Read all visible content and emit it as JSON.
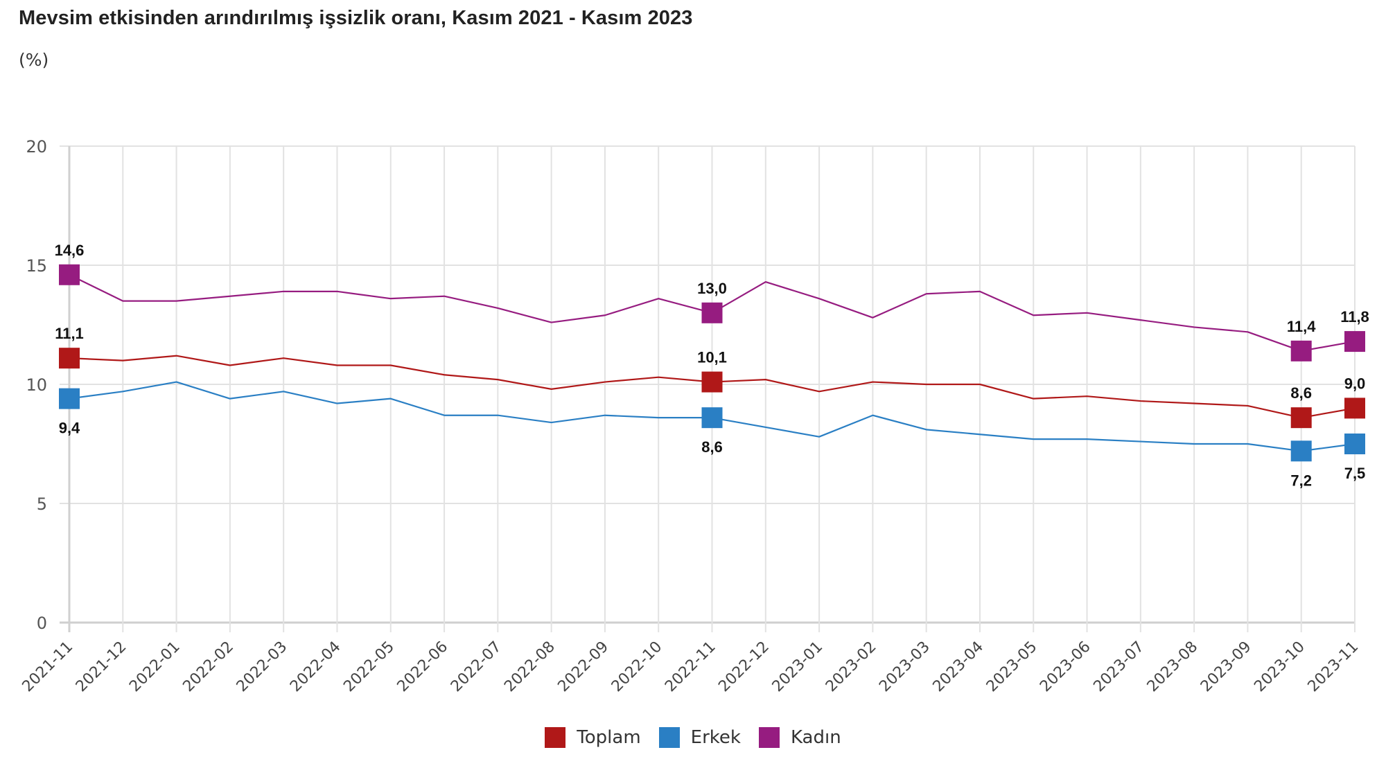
{
  "chart_data": {
    "type": "line",
    "title": "Mevsim etkisinden arındırılmış işsizlik oranı, Kasım 2021 - Kasım 2023",
    "subtitle": "(%)",
    "xlabel": "",
    "ylabel": "",
    "ylim": [
      0,
      20
    ],
    "yticks": [
      "0",
      "5",
      "10",
      "15",
      "20"
    ],
    "ytick_values": [
      0,
      5,
      10,
      15,
      20
    ],
    "grid": true,
    "legend_position": "bottom-center",
    "categories": [
      "2021-11",
      "2021-12",
      "2022-01",
      "2022-02",
      "2022-03",
      "2022-04",
      "2022-05",
      "2022-06",
      "2022-07",
      "2022-08",
      "2022-09",
      "2022-10",
      "2022-11",
      "2022-12",
      "2023-01",
      "2023-02",
      "2023-03",
      "2023-04",
      "2023-05",
      "2023-06",
      "2023-07",
      "2023-08",
      "2023-09",
      "2023-10",
      "2023-11"
    ],
    "series": [
      {
        "name": "Toplam",
        "color": "#B01818",
        "values": [
          11.1,
          11.0,
          11.2,
          10.8,
          11.1,
          10.8,
          10.8,
          10.4,
          10.2,
          9.8,
          10.1,
          10.3,
          10.1,
          10.2,
          9.7,
          10.1,
          10.0,
          10.0,
          9.4,
          9.5,
          9.3,
          9.2,
          9.1,
          8.6,
          9.0
        ],
        "labels": {
          "0": "11,1",
          "12": "10,1",
          "23": "8,6",
          "24": "9,0"
        },
        "label_side": "above"
      },
      {
        "name": "Erkek",
        "color": "#2A7FC4",
        "values": [
          9.4,
          9.7,
          10.1,
          9.4,
          9.7,
          9.2,
          9.4,
          8.7,
          8.7,
          8.4,
          8.7,
          8.6,
          8.6,
          8.2,
          7.8,
          8.7,
          8.1,
          7.9,
          7.7,
          7.7,
          7.6,
          7.5,
          7.5,
          7.2,
          7.5
        ],
        "labels": {
          "0": "9,4",
          "12": "8,6",
          "23": "7,2",
          "24": "7,5"
        },
        "label_side": "below"
      },
      {
        "name": "Kadın",
        "color": "#961C80",
        "values": [
          14.6,
          13.5,
          13.5,
          13.7,
          13.9,
          13.9,
          13.6,
          13.7,
          13.2,
          12.6,
          12.9,
          13.6,
          13.0,
          14.3,
          13.6,
          12.8,
          13.8,
          13.9,
          12.9,
          13.0,
          12.7,
          12.4,
          12.2,
          11.4,
          11.8
        ],
        "labels": {
          "0": "14,6",
          "12": "13,0",
          "23": "11,4",
          "24": "11,8"
        },
        "label_side": "above"
      }
    ]
  }
}
